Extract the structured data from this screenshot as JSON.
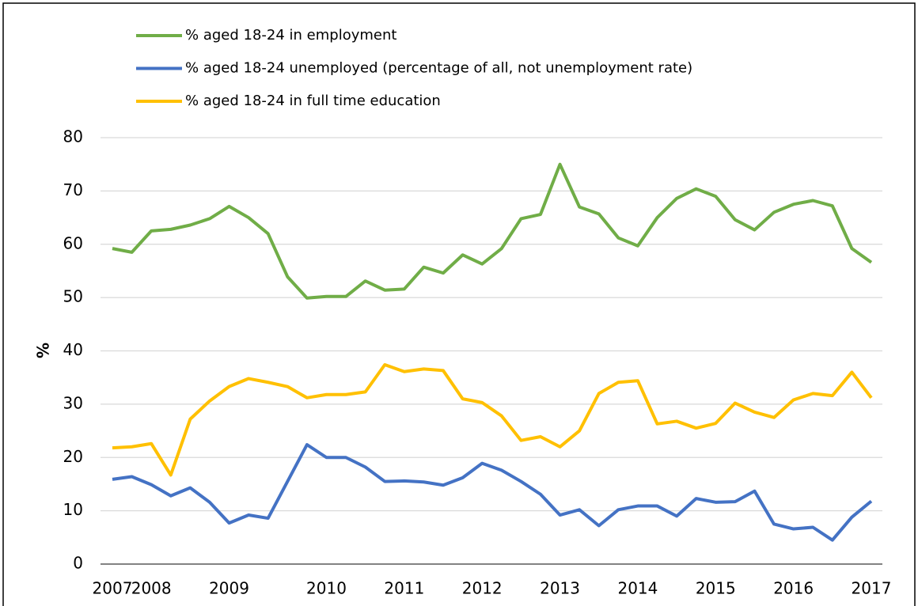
{
  "chart_data": {
    "type": "line",
    "y_label": "%",
    "categories": [
      "2007",
      null,
      "2008",
      null,
      null,
      null,
      "2009",
      null,
      null,
      null,
      null,
      "2010",
      null,
      null,
      null,
      "2011",
      null,
      null,
      null,
      "2012",
      null,
      null,
      null,
      "2013",
      null,
      null,
      null,
      "2014",
      null,
      null,
      null,
      "2015",
      null,
      null,
      null,
      "2016",
      null,
      null,
      null,
      "2017"
    ],
    "series": [
      {
        "name": "% aged 18-24 in employment",
        "color": "#70ad47",
        "values": [
          59.2,
          58.5,
          62.5,
          62.8,
          63.6,
          64.8,
          67.1,
          65.0,
          62.0,
          53.9,
          49.9,
          50.2,
          50.2,
          53.1,
          51.4,
          51.6,
          55.7,
          54.6,
          58.0,
          56.3,
          59.2,
          64.8,
          65.6,
          75.0,
          67.0,
          65.7,
          61.2,
          59.7,
          65.0,
          68.6,
          70.4,
          69.0,
          64.6,
          62.7,
          66.0,
          67.5,
          68.2,
          67.2,
          59.2,
          56.6
        ]
      },
      {
        "name": "% aged 18-24 unemployed (percentage of all, not unemployment rate)",
        "color": "#4472c4",
        "values": [
          15.9,
          16.4,
          14.9,
          12.8,
          14.3,
          11.6,
          7.7,
          9.2,
          8.6,
          15.5,
          22.4,
          20.0,
          20.0,
          18.2,
          15.5,
          15.6,
          15.4,
          14.8,
          16.2,
          18.9,
          17.6,
          15.5,
          13.1,
          9.2,
          10.2,
          7.2,
          10.2,
          10.9,
          10.9,
          9.0,
          12.3,
          11.6,
          11.7,
          13.7,
          7.5,
          6.6,
          6.9,
          4.5,
          8.8,
          11.8
        ]
      },
      {
        "name": "% aged 18-24 in full time education",
        "color": "#ffc000",
        "values": [
          21.8,
          22.0,
          22.6,
          16.7,
          27.2,
          30.6,
          33.3,
          34.8,
          34.1,
          33.3,
          31.2,
          31.8,
          31.8,
          32.3,
          37.4,
          36.1,
          36.6,
          36.3,
          31.0,
          30.3,
          27.8,
          23.2,
          23.9,
          22.0,
          25.0,
          32.0,
          34.1,
          34.4,
          26.3,
          26.8,
          25.5,
          26.4,
          30.2,
          28.5,
          27.5,
          30.8,
          32.0,
          31.6,
          36.0,
          31.2
        ]
      }
    ],
    "ylim": [
      0,
      80
    ],
    "yticks": [
      0,
      10,
      20,
      30,
      40,
      50,
      60,
      70,
      80
    ],
    "grid": true,
    "legend": "top"
  }
}
